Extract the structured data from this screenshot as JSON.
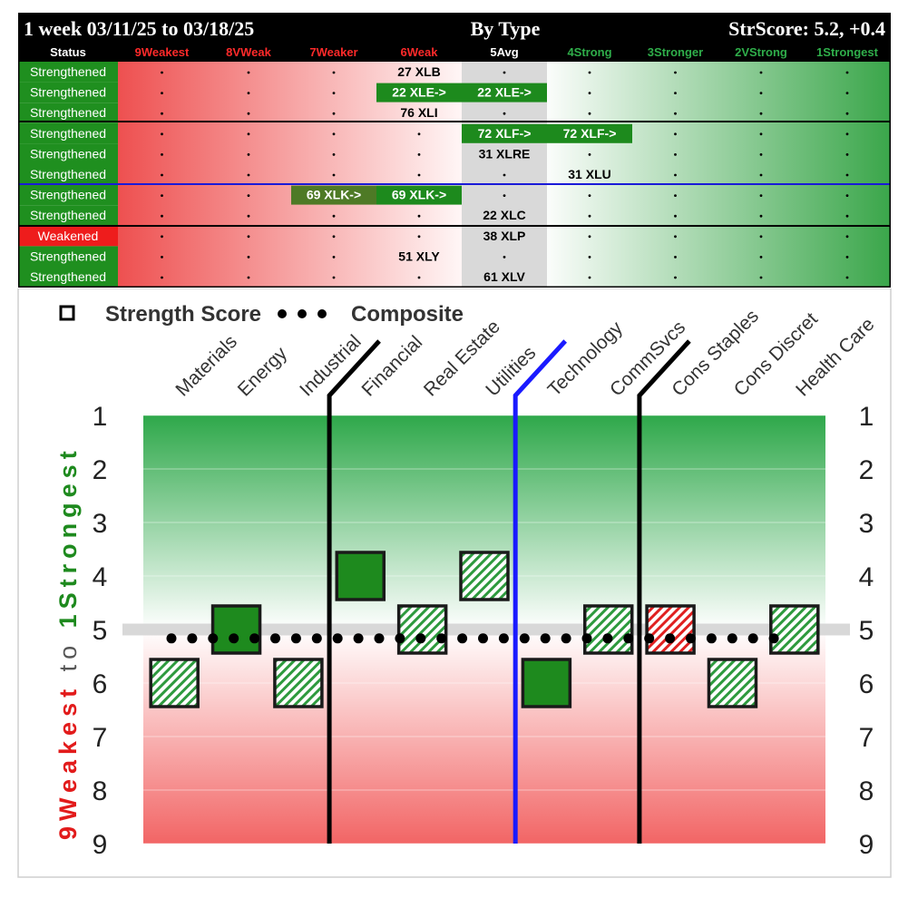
{
  "header": {
    "period": "1 week 03/11/25 to 03/18/25",
    "group": "By Type",
    "score": "StrScore: 5.2, +0.4"
  },
  "columns": [
    {
      "label": "Status",
      "color": "#ffffff"
    },
    {
      "label": "9Weakest",
      "color": "#ff2a2a"
    },
    {
      "label": "8VWeak",
      "color": "#ff2a2a"
    },
    {
      "label": "7Weaker",
      "color": "#ff2a2a"
    },
    {
      "label": "6Weak",
      "color": "#ff2a2a"
    },
    {
      "label": "5Avg",
      "color": "#ffffff"
    },
    {
      "label": "4Strong",
      "color": "#2fae4a"
    },
    {
      "label": "3Stronger",
      "color": "#2fae4a"
    },
    {
      "label": "2VStrong",
      "color": "#2fae4a"
    },
    {
      "label": "1Strongest",
      "color": "#2fae4a"
    }
  ],
  "rows": [
    {
      "status": "Strengthened",
      "status_type": "up",
      "items": [
        {
          "col": 4,
          "text": "27 XLB"
        }
      ]
    },
    {
      "status": "Strengthened",
      "status_type": "up",
      "items": [
        {
          "col": 4,
          "text": "22 XLE->",
          "hl": true
        },
        {
          "col": 5,
          "text": "22 XLE->",
          "hl": true
        }
      ]
    },
    {
      "status": "Strengthened",
      "status_type": "up",
      "items": [
        {
          "col": 4,
          "text": "76 XLI"
        }
      ]
    },
    {
      "status": "Strengthened",
      "status_type": "up",
      "items": [
        {
          "col": 5,
          "text": "72 XLF->",
          "hl": true
        },
        {
          "col": 6,
          "text": "72 XLF->",
          "hl": true
        }
      ]
    },
    {
      "status": "Strengthened",
      "status_type": "up",
      "items": [
        {
          "col": 5,
          "text": "31 XLRE"
        }
      ]
    },
    {
      "status": "Strengthened",
      "status_type": "up",
      "items": [
        {
          "col": 6,
          "text": "31 XLU"
        }
      ]
    },
    {
      "status": "Strengthened",
      "status_type": "up",
      "items": [
        {
          "col": 3,
          "text": "69 XLK->",
          "hl": true,
          "olive": true
        },
        {
          "col": 4,
          "text": "69 XLK->",
          "hl": true
        }
      ]
    },
    {
      "status": "Strengthened",
      "status_type": "up",
      "items": [
        {
          "col": 5,
          "text": "22 XLC"
        }
      ]
    },
    {
      "status": "Weakened",
      "status_type": "down",
      "items": [
        {
          "col": 5,
          "text": "38 XLP"
        }
      ]
    },
    {
      "status": "Strengthened",
      "status_type": "up",
      "items": [
        {
          "col": 4,
          "text": "51 XLY"
        }
      ]
    },
    {
      "status": "Strengthened",
      "status_type": "up",
      "items": [
        {
          "col": 5,
          "text": "61 XLV"
        }
      ]
    }
  ],
  "chart_data": {
    "type": "scatter",
    "legend": {
      "strength_label": "Strength Score",
      "composite_label": "Composite"
    },
    "categories": [
      "Materials",
      "Energy",
      "Industrial",
      "Financial",
      "Real Estate",
      "Utilities",
      "Technology",
      "CommSvcs",
      "Cons Staples",
      "Cons Discret",
      "Health Care"
    ],
    "strength_scores": [
      6,
      5,
      6,
      4,
      5,
      4,
      6,
      5,
      5,
      6,
      5
    ],
    "styles": [
      "hatch-green",
      "solid",
      "hatch-green",
      "solid",
      "hatch-green",
      "hatch-green",
      "solid",
      "hatch-green",
      "hatch-red",
      "hatch-green",
      "hatch-green"
    ],
    "composite": 5.2,
    "average_line": 5,
    "ylim": [
      1,
      9
    ],
    "yticks": [
      "1",
      "2",
      "3",
      "4",
      "5",
      "6",
      "7",
      "8",
      "9"
    ],
    "ylabel_weak": "9Weakest",
    "ylabel_to": "to",
    "ylabel_strong": "1Strongest",
    "dividers": [
      {
        "after": "Industrial",
        "color": "#000000"
      },
      {
        "after": "Utilities",
        "color": "#1a1aff"
      },
      {
        "after": "CommSvcs",
        "color": "#000000"
      }
    ]
  }
}
